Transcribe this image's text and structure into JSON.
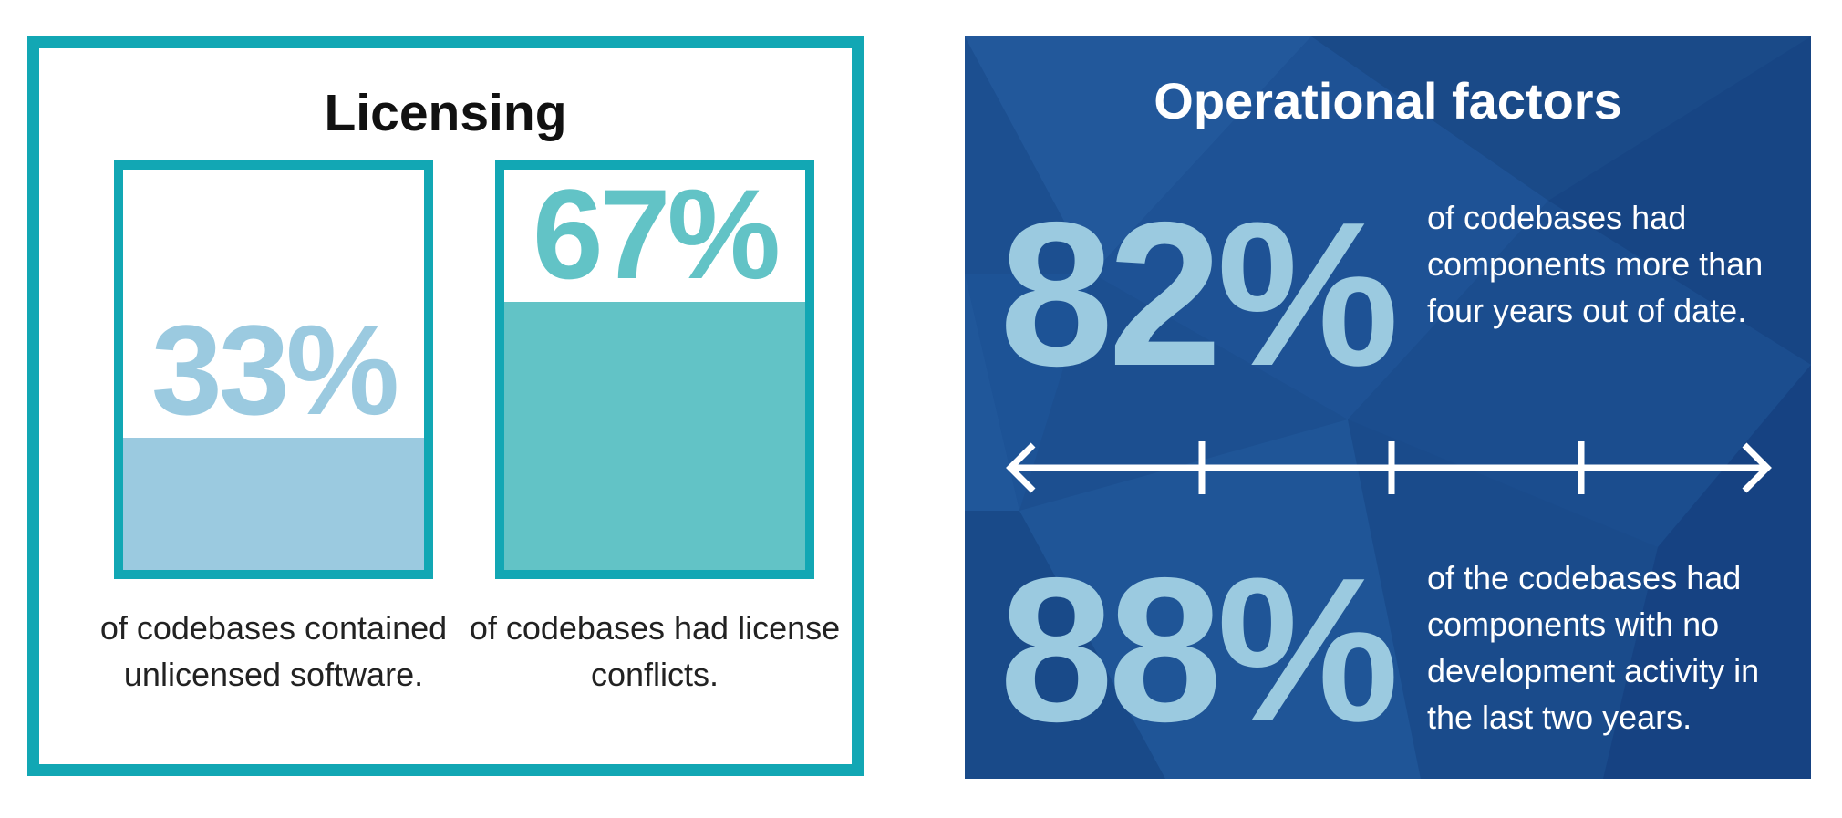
{
  "licensing": {
    "title": "Licensing",
    "left_stat": {
      "value": "33%",
      "fill_fraction": 0.33,
      "caption": "of codebases contained unlicensed software."
    },
    "right_stat": {
      "value": "67%",
      "fill_fraction": 0.67,
      "caption": "of codebases had license conflicts."
    }
  },
  "operational": {
    "title": "Operational factors",
    "stat_1": {
      "value": "82%",
      "text": "of codebases had components more than four years out of date."
    },
    "stat_2": {
      "value": "88%",
      "text": "of the codebases had components with no development activity in the last two years."
    },
    "divider_icon": "double-arrow-ruler-icon"
  },
  "colors": {
    "teal_border": "#12a7b4",
    "light_blue": "#9bcae0",
    "teal_fill": "#62c3c6",
    "navy_background": "#1b4f91"
  }
}
